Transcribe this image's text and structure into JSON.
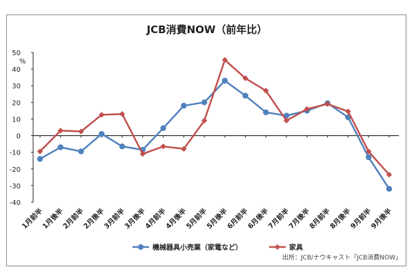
{
  "chart_data": {
    "type": "line",
    "title": "JCB消費NOW（前年比）",
    "yunit": "%",
    "ylim": [
      -40,
      50
    ],
    "yticks": [
      -40,
      -30,
      -20,
      -10,
      0,
      10,
      20,
      30,
      40,
      50
    ],
    "grid": false,
    "legend_position": "bottom",
    "categories": [
      "1月前半",
      "1月後半",
      "2月前半",
      "2月後半",
      "3月前半",
      "3月後半",
      "4月前半",
      "4月後半",
      "5月前半",
      "5月後半",
      "6月前半",
      "6月後半",
      "7月前半",
      "7月後半",
      "8月前半",
      "8月後半",
      "9月前半",
      "9月後半"
    ],
    "series": [
      {
        "name": "機械器具小売業（家電など）",
        "color": "#4f81bd",
        "marker": "circle",
        "values": [
          -14,
          -7,
          -9.5,
          1,
          -6.5,
          -8.5,
          4.5,
          18,
          20,
          33,
          24,
          14,
          12,
          15,
          19.5,
          11,
          -13,
          -32
        ]
      },
      {
        "name": "家具",
        "color": "#c0504d",
        "marker": "diamond",
        "values": [
          -9.5,
          3,
          2.5,
          12.5,
          13,
          -11,
          -6.5,
          -8,
          9,
          45.5,
          34.5,
          27,
          9,
          16,
          19,
          14.5,
          -9.5,
          -23.5
        ]
      }
    ],
    "source": "出所：JCB/ナウキャスト「JCB消費NOW」"
  }
}
